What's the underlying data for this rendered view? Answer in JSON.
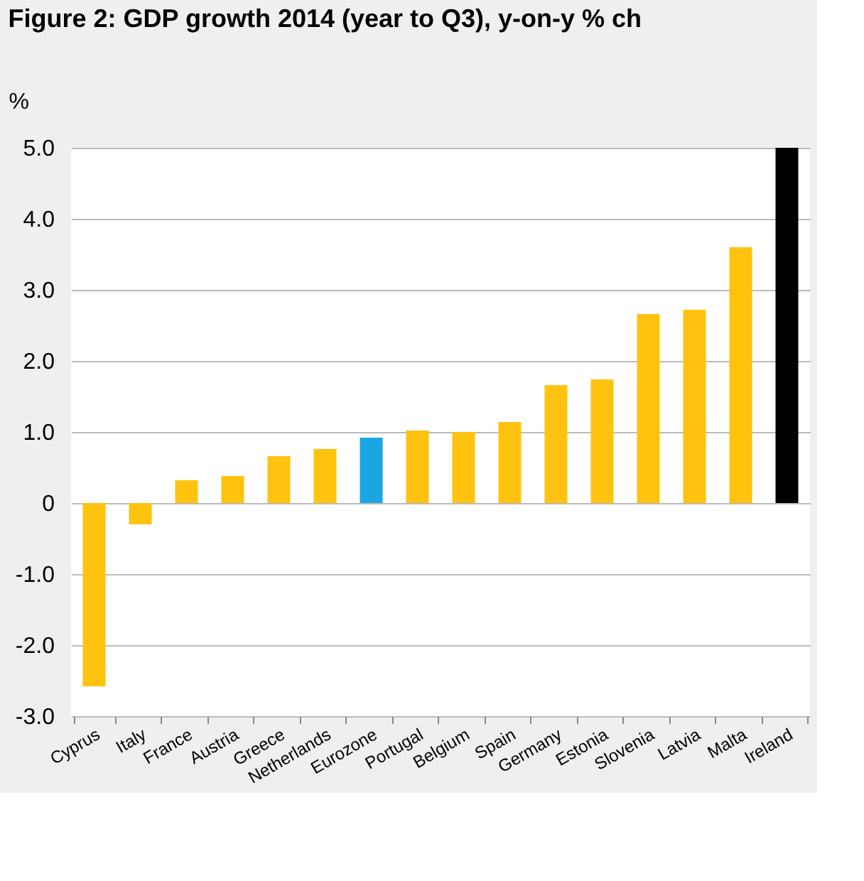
{
  "chart_data": {
    "type": "bar",
    "title": "Figure 2: GDP growth 2014 (year to Q3), y-on-y % ch",
    "ylabel": "%",
    "categories": [
      "Cyprus",
      "Italy",
      "France",
      "Austria",
      "Greece",
      "Netherlands",
      "Eurozone",
      "Portugal",
      "Belgium",
      "Spain",
      "Germany",
      "Estonia",
      "Slovenia",
      "Latvia",
      "Malta",
      "Ireland"
    ],
    "values": [
      -2.58,
      -0.3,
      0.32,
      0.38,
      0.66,
      0.76,
      0.92,
      1.02,
      1.0,
      1.14,
      1.66,
      1.74,
      2.66,
      2.72,
      3.6,
      5.0
    ],
    "colors": [
      "#ffc20e",
      "#ffc20e",
      "#ffc20e",
      "#ffc20e",
      "#ffc20e",
      "#ffc20e",
      "#1ba6e3",
      "#ffc20e",
      "#ffc20e",
      "#ffc20e",
      "#ffc20e",
      "#ffc20e",
      "#ffc20e",
      "#ffc20e",
      "#ffc20e",
      "#000000"
    ],
    "ylim": [
      -3,
      5
    ],
    "yticks": [
      {
        "value": -3,
        "label": "-3.0"
      },
      {
        "value": -2,
        "label": "-2.0"
      },
      {
        "value": -1,
        "label": "-1.0"
      },
      0,
      {
        "value": 1,
        "label": "1.0"
      },
      {
        "value": 2,
        "label": "2.0"
      },
      {
        "value": 3,
        "label": "3.0"
      },
      {
        "value": 4,
        "label": "4.0"
      },
      {
        "value": 5,
        "label": "5.0"
      }
    ],
    "grid": "y"
  }
}
